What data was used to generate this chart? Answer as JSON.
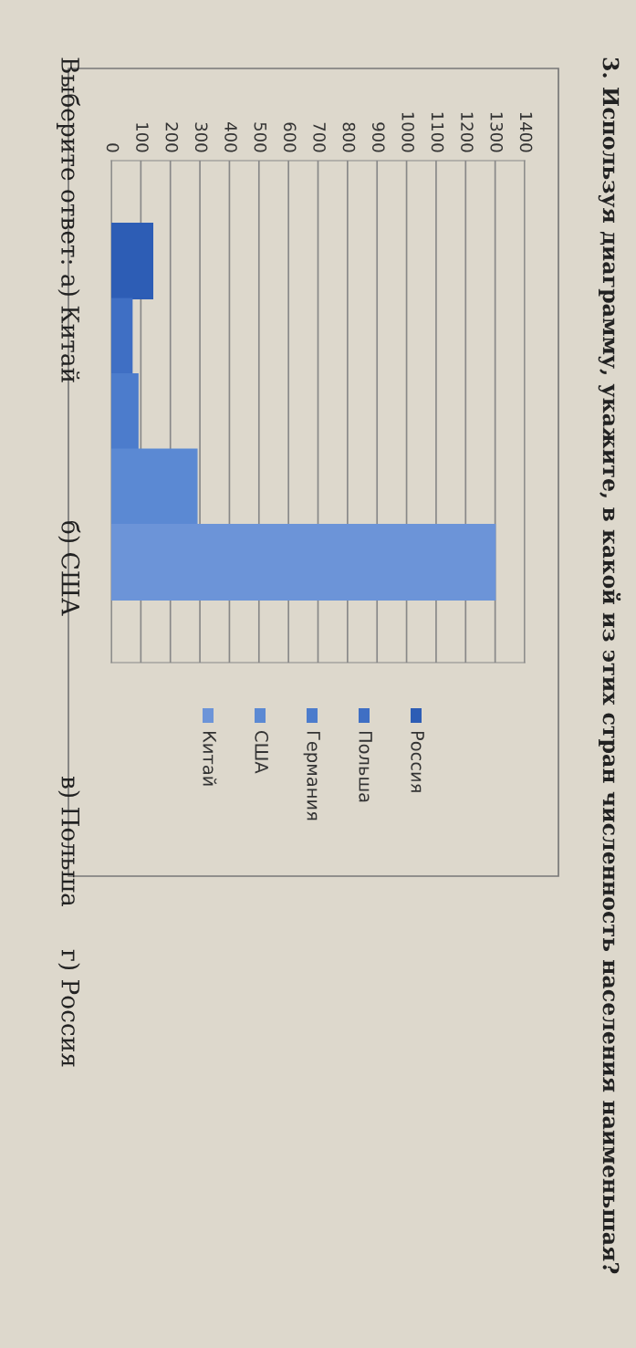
{
  "chart_data": {
    "type": "bar",
    "orientation": "horizontal",
    "title": "3. Используя диаграмму, укажите, в какой из этих стран численность населения наименьшая?",
    "categories": [
      null
    ],
    "series": [
      {
        "name": "Россия",
        "color": "#2d5db5",
        "values": [
          140
        ]
      },
      {
        "name": "Польша",
        "color": "#3f6fc4",
        "values": [
          70
        ]
      },
      {
        "name": "Германия",
        "color": "#4c7ccc",
        "values": [
          90
        ]
      },
      {
        "name": "США",
        "color": "#5b89d3",
        "values": [
          290
        ]
      },
      {
        "name": "Китай",
        "color": "#6c94d8",
        "values": [
          1300
        ]
      }
    ],
    "xlim": [
      0,
      1400
    ],
    "xticks": [
      0,
      100,
      200,
      300,
      400,
      500,
      600,
      700,
      800,
      900,
      1000,
      1100,
      1200,
      1300,
      1400
    ],
    "grid": "x",
    "legend": "bottom",
    "annotations": [
      "Выберите ответ: а) Китай",
      "б) США",
      "в) Польша",
      "г) Россия"
    ]
  }
}
